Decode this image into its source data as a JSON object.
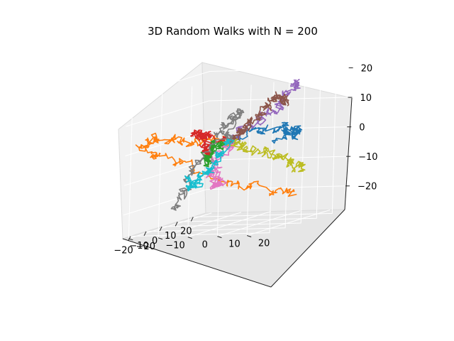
{
  "chart_data": {
    "type": "line",
    "projection": "3d",
    "title": "3D Random Walks with N = 200",
    "xlabel": "",
    "ylabel": "",
    "zlabel": "",
    "xlim": [
      -25,
      28
    ],
    "ylim": [
      -22,
      25
    ],
    "zlim": [
      -28,
      23
    ],
    "x_ticks": [
      "−20",
      "−10",
      "0",
      "10",
      "20"
    ],
    "y_ticks": [
      "−20",
      "−10",
      "0",
      "10",
      "20"
    ],
    "z_ticks": [
      "−20",
      "−10",
      "0",
      "10",
      "20"
    ],
    "grid": true,
    "legend": "none",
    "steps_per_walk": 200,
    "colors": [
      "#1f77b4",
      "#ff7f0e",
      "#2ca02c",
      "#d62728",
      "#9467bd",
      "#8c564b",
      "#e377c2",
      "#7f7f7f",
      "#bcbd22",
      "#17becf"
    ],
    "series": [
      {
        "values": [
          [
            0,
            0,
            0
          ],
          [
            4,
            6,
            3
          ],
          [
            9,
            10,
            4
          ],
          [
            14,
            11,
            1
          ],
          [
            18,
            13,
            -1
          ],
          [
            22,
            12,
            1
          ],
          [
            19,
            9,
            0
          ],
          [
            16,
            8,
            -2
          ]
        ]
      },
      {
        "values": [
          [
            0,
            0,
            0
          ],
          [
            -3,
            -4,
            1
          ],
          [
            -8,
            -9,
            2
          ],
          [
            -12,
            -13,
            4
          ],
          [
            -17,
            -16,
            5
          ],
          [
            -21,
            -18,
            3
          ],
          [
            -22,
            -15,
            -1
          ],
          [
            -15,
            -10,
            -4
          ],
          [
            -8,
            2,
            -12
          ],
          [
            0,
            6,
            -15
          ],
          [
            7,
            12,
            -18
          ],
          [
            12,
            17,
            -20
          ]
        ]
      },
      {
        "values": [
          [
            0,
            0,
            0
          ],
          [
            -3,
            -2,
            -1
          ],
          [
            -6,
            -4,
            -3
          ],
          [
            -8,
            -3,
            -5
          ],
          [
            -11,
            -2,
            -4
          ],
          [
            -9,
            0,
            -1
          ],
          [
            -7,
            -1,
            1
          ],
          [
            -5,
            2,
            0
          ]
        ]
      },
      {
        "values": [
          [
            0,
            0,
            0
          ],
          [
            -4,
            -2,
            2
          ],
          [
            -7,
            -5,
            4
          ],
          [
            -10,
            -6,
            5
          ],
          [
            -13,
            -4,
            4
          ],
          [
            -12,
            -1,
            2
          ],
          [
            -9,
            -3,
            0
          ],
          [
            -6,
            -4,
            -2
          ]
        ]
      },
      {
        "values": [
          [
            0,
            0,
            0
          ],
          [
            2,
            3,
            2
          ],
          [
            5,
            6,
            5
          ],
          [
            6,
            9,
            8
          ],
          [
            8,
            12,
            11
          ],
          [
            9,
            14,
            14
          ],
          [
            10,
            16,
            17
          ],
          [
            11,
            17,
            19
          ]
        ]
      },
      {
        "values": [
          [
            0,
            0,
            0
          ],
          [
            2,
            2,
            2
          ],
          [
            4,
            3,
            4
          ],
          [
            5,
            5,
            6
          ],
          [
            7,
            7,
            9
          ],
          [
            8,
            9,
            12
          ],
          [
            9,
            11,
            14
          ],
          [
            10,
            12,
            12
          ],
          [
            12,
            13,
            10
          ]
        ]
      },
      {
        "values": [
          [
            0,
            0,
            0
          ],
          [
            1,
            -2,
            -3
          ],
          [
            3,
            -5,
            -6
          ],
          [
            5,
            -7,
            -9
          ],
          [
            7,
            -9,
            -12
          ],
          [
            9,
            -8,
            -14
          ],
          [
            11,
            -10,
            -16
          ],
          [
            13,
            -12,
            -17
          ]
        ]
      },
      {
        "values": [
          [
            0,
            0,
            0
          ],
          [
            -2,
            -3,
            3
          ],
          [
            -1,
            0,
            6
          ],
          [
            1,
            2,
            8
          ],
          [
            0,
            4,
            10
          ],
          [
            -4,
            -6,
            -4
          ],
          [
            -6,
            -10,
            -10
          ],
          [
            -7,
            -12,
            -16
          ],
          [
            -8,
            -14,
            -21
          ]
        ]
      },
      {
        "values": [
          [
            0,
            0,
            0
          ],
          [
            4,
            2,
            -2
          ],
          [
            8,
            5,
            -4
          ],
          [
            12,
            8,
            -6
          ],
          [
            16,
            10,
            -8
          ],
          [
            19,
            12,
            -10
          ],
          [
            22,
            13,
            -12
          ],
          [
            24,
            12,
            -14
          ]
        ]
      },
      {
        "values": [
          [
            0,
            0,
            0
          ],
          [
            -2,
            -1,
            -3
          ],
          [
            -4,
            -2,
            -6
          ],
          [
            -6,
            -4,
            -8
          ],
          [
            -8,
            -5,
            -10
          ],
          [
            -10,
            -6,
            -12
          ],
          [
            -9,
            -8,
            -14
          ],
          [
            -8,
            -9,
            -10
          ]
        ]
      }
    ]
  }
}
